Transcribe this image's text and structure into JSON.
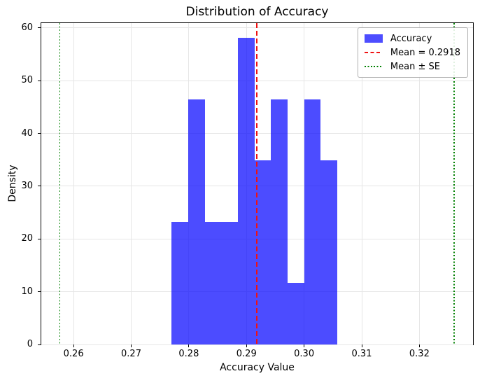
{
  "figure": {
    "title": "Distribution of Accuracy",
    "xlabel": "Accuracy Value",
    "ylabel": "Density"
  },
  "legend": {
    "position": "upper right",
    "items": [
      {
        "label": "Accuracy",
        "swatch": "blue-patch",
        "color": "#4d4dff"
      },
      {
        "label": "Mean = 0.2918",
        "swatch": "red-dashed-line",
        "color": "#ef1212"
      },
      {
        "label": "Mean ± SE",
        "swatch": "green-dotted-line",
        "color": "#008000"
      }
    ]
  },
  "chart_data": {
    "type": "bar",
    "subtype": "histogram",
    "title": "Distribution of Accuracy",
    "xlabel": "Accuracy Value",
    "ylabel": "Density",
    "bar_color": "#0000ff",
    "bar_alpha": 0.7,
    "bin_edges": [
      0.277,
      0.2799,
      0.2828,
      0.2856,
      0.2885,
      0.2914,
      0.2942,
      0.2971,
      0.3,
      0.3028,
      0.3057
    ],
    "densities": [
      23.23,
      46.46,
      23.23,
      23.23,
      58.07,
      34.84,
      46.46,
      11.61,
      46.46,
      34.84
    ],
    "mean": 0.2918,
    "se": 0.0342,
    "mean_minus_se": 0.2576,
    "mean_plus_se": 0.326,
    "mean_line": {
      "x": 0.2918,
      "color": "#ef1212",
      "style": "dashed"
    },
    "se_lines": {
      "x": [
        0.2576,
        0.326
      ],
      "color": "#008000",
      "style": "dotted"
    },
    "xticks": [
      "0.26",
      "0.27",
      "0.28",
      "0.29",
      "0.30",
      "0.31",
      "0.32"
    ],
    "yticks": [
      "0",
      "10",
      "20",
      "30",
      "40",
      "50",
      "60"
    ],
    "xlim": [
      0.2544,
      0.3293
    ],
    "ylim": [
      0,
      60.9
    ],
    "grid": true,
    "legend_position": "upper right"
  }
}
